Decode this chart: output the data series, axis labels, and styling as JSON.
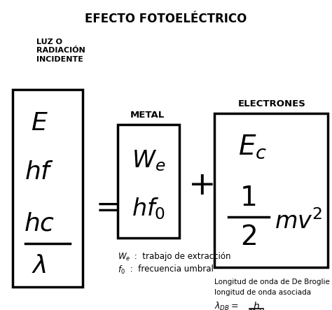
{
  "title": "EFECTO FOTOELÉCTRICO",
  "bg_color": "#ffffff",
  "fig_width": 4.74,
  "fig_height": 4.43,
  "dpi": 100,
  "label_luz": "LUZ O\nRADIACIÓN\nINCIDENTE",
  "label_metal": "METAL",
  "label_electrones": "ELECTRONES",
  "note1_a": "$W_e$",
  "note1_b": " :  trabajo de extracción",
  "note2_a": "$f_0$",
  "note2_b": " :  frecuencia umbral",
  "note3": "Longitud de onda de De Broglie o",
  "note4": "longitud de onda asociada"
}
